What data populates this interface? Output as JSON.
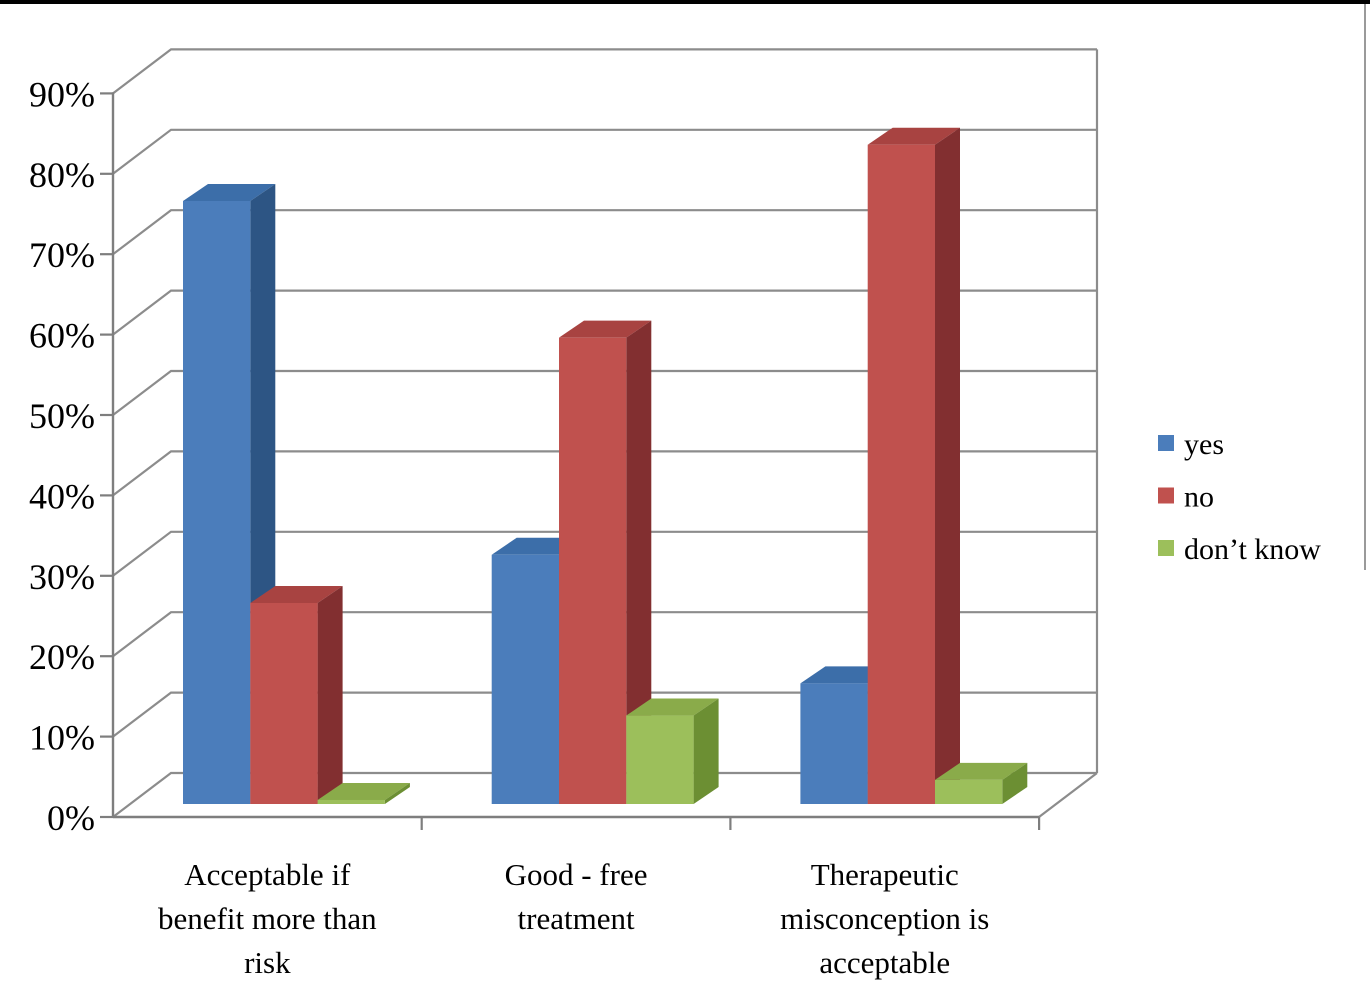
{
  "chart_data": {
    "type": "bar",
    "style": "3d-clustered-column",
    "title": "",
    "xlabel": "",
    "ylabel": "",
    "categories": [
      "Acceptable if benefit more than risk",
      "Good - free treatment",
      "Therapeutic misconception is acceptable"
    ],
    "category_label_lines": [
      [
        "Acceptable if",
        "benefit more than",
        "risk"
      ],
      [
        "Good - free",
        "treatment"
      ],
      [
        "Therapeutic",
        "misconception is",
        "acceptable"
      ]
    ],
    "series": [
      {
        "name": "yes",
        "values": [
          75,
          31,
          15
        ],
        "color_front": "#4b7dbb",
        "color_top": "#3c6ea9",
        "color_side": "#2d5584"
      },
      {
        "name": "no",
        "values": [
          25,
          58,
          82
        ],
        "color_front": "#c0514e",
        "color_top": "#a84341",
        "color_side": "#822f30"
      },
      {
        "name": "don’t know",
        "values": [
          0.5,
          11,
          3
        ],
        "color_front": "#9cbf5b",
        "color_top": "#8aab4a",
        "color_side": "#6c8f33"
      }
    ],
    "ylim": [
      0,
      90
    ],
    "ytick_step": 10,
    "ytick_labels": [
      "0%",
      "10%",
      "20%",
      "30%",
      "40%",
      "50%",
      "60%",
      "70%",
      "80%",
      "90%"
    ],
    "grid": true,
    "gridline_color": "#8c8c8c",
    "axis_color": "#7e7e7e",
    "legend_position": "right",
    "legend_items": [
      "yes",
      "no",
      "don’t know"
    ]
  }
}
